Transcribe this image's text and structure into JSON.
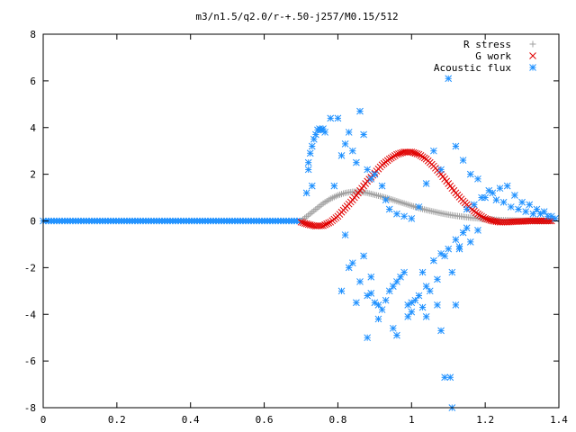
{
  "chart_data": {
    "type": "scatter",
    "title": "m3/n1.5/q2.0/r-+.50-j257/M0.15/512",
    "xlabel": "",
    "ylabel": "",
    "xlim": [
      0,
      1.4
    ],
    "ylim": [
      -8,
      8
    ],
    "xticks": [
      0,
      0.2,
      0.4,
      0.6,
      0.8,
      1,
      1.2,
      1.4
    ],
    "xtick_labels": [
      "0",
      "0.2",
      "0.4",
      "0.6",
      "0.8",
      "1",
      "1.2",
      "1.4"
    ],
    "yticks": [
      -8,
      -6,
      -4,
      -2,
      0,
      2,
      4,
      6,
      8
    ],
    "ytick_labels": [
      "-8",
      "-6",
      "-4",
      "-2",
      "0",
      "2",
      "4",
      "6",
      "8"
    ],
    "grid": false,
    "legend_position": "top-right",
    "series": [
      {
        "name": "R stress",
        "color": "#a0a0a0",
        "marker": "plus",
        "x": [
          0.7,
          0.72,
          0.74,
          0.76,
          0.78,
          0.8,
          0.82,
          0.84,
          0.86,
          0.88,
          0.9,
          0.92,
          0.94,
          0.96,
          0.98,
          1.0,
          1.02,
          1.04,
          1.06,
          1.08,
          1.1,
          1.12,
          1.14,
          1.16,
          1.18,
          1.2,
          1.22,
          1.24,
          1.26,
          1.28,
          1.3,
          1.32,
          1.34,
          1.36,
          1.38
        ],
        "y": [
          0.0,
          0.25,
          0.5,
          0.75,
          0.95,
          1.1,
          1.2,
          1.25,
          1.25,
          1.2,
          1.12,
          1.04,
          0.95,
          0.85,
          0.75,
          0.65,
          0.55,
          0.47,
          0.4,
          0.33,
          0.27,
          0.22,
          0.18,
          0.14,
          0.11,
          0.08,
          0.06,
          0.04,
          0.03,
          0.02,
          0.01,
          0.01,
          0.0,
          0.0,
          0.0
        ]
      },
      {
        "name": "G work",
        "color": "#e00000",
        "marker": "cross",
        "x": [
          0.7,
          0.72,
          0.74,
          0.76,
          0.78,
          0.8,
          0.82,
          0.84,
          0.86,
          0.88,
          0.9,
          0.92,
          0.94,
          0.96,
          0.98,
          1.0,
          1.02,
          1.04,
          1.06,
          1.08,
          1.1,
          1.12,
          1.14,
          1.16,
          1.18,
          1.2,
          1.22,
          1.24,
          1.26,
          1.28,
          1.3,
          1.32,
          1.34,
          1.36,
          1.38
        ],
        "y": [
          -0.05,
          -0.15,
          -0.22,
          -0.2,
          -0.05,
          0.2,
          0.55,
          0.9,
          1.3,
          1.7,
          2.05,
          2.4,
          2.65,
          2.85,
          2.95,
          2.95,
          2.85,
          2.65,
          2.35,
          2.0,
          1.6,
          1.2,
          0.85,
          0.55,
          0.3,
          0.1,
          0.0,
          -0.05,
          -0.05,
          -0.03,
          -0.02,
          0.0,
          0.0,
          0.0,
          0.0
        ]
      },
      {
        "name": "Acoustic flux",
        "color": "#1e90ff",
        "marker": "star",
        "baseline": {
          "x_start": 0.0,
          "x_end": 0.7,
          "y": 0.0
        },
        "x": [
          0.715,
          0.72,
          0.725,
          0.73,
          0.735,
          0.74,
          0.745,
          0.75,
          0.755,
          0.76,
          0.765,
          0.72,
          0.73,
          0.78,
          0.8,
          0.83,
          0.86,
          0.87,
          0.79,
          0.81,
          0.82,
          0.84,
          0.85,
          0.88,
          0.89,
          0.9,
          0.92,
          0.93,
          0.94,
          0.96,
          0.98,
          1.0,
          1.02,
          1.04,
          1.06,
          1.08,
          1.1,
          1.12,
          1.14,
          1.16,
          1.18,
          1.2,
          1.22,
          1.24,
          1.26,
          1.28,
          1.3,
          1.32,
          1.34,
          1.36,
          1.38,
          0.82,
          0.84,
          0.86,
          0.88,
          0.9,
          0.92,
          0.94,
          0.96,
          0.98,
          1.0,
          1.02,
          1.04,
          1.06,
          1.08,
          1.1,
          1.12,
          1.14,
          1.16,
          1.18,
          0.81,
          0.83,
          0.87,
          0.89,
          0.91,
          0.93,
          0.95,
          0.97,
          0.99,
          1.01,
          1.03,
          1.05,
          1.07,
          1.09,
          1.11,
          1.13,
          1.15,
          0.85,
          0.88,
          0.91,
          0.95,
          0.99,
          1.03,
          1.07,
          0.89,
          0.96,
          1.0,
          1.04,
          1.08,
          1.105,
          1.09,
          1.11,
          1.12,
          1.13,
          1.15,
          1.17,
          1.19,
          1.21,
          1.23,
          1.25,
          1.27,
          1.29,
          1.31,
          1.33,
          1.35,
          1.37,
          1.39
        ],
        "y": [
          1.2,
          2.5,
          2.9,
          3.2,
          3.5,
          3.7,
          3.9,
          3.95,
          3.9,
          3.95,
          3.8,
          2.2,
          1.5,
          4.4,
          4.4,
          3.8,
          4.7,
          3.7,
          1.5,
          2.8,
          3.3,
          3.0,
          2.5,
          2.2,
          1.8,
          2.0,
          1.5,
          0.9,
          0.5,
          0.3,
          0.2,
          0.1,
          0.6,
          1.6,
          3.0,
          2.2,
          6.1,
          3.2,
          2.6,
          2.0,
          1.8,
          1.0,
          1.2,
          1.4,
          1.5,
          1.1,
          0.8,
          0.7,
          0.5,
          0.4,
          0.2,
          -0.6,
          -1.8,
          -2.6,
          -3.2,
          -3.5,
          -3.8,
          -3.0,
          -2.6,
          -2.2,
          -3.5,
          -3.2,
          -2.8,
          -1.7,
          -1.4,
          -1.2,
          -0.8,
          -0.5,
          -0.9,
          -0.4,
          -3.0,
          -2.0,
          -1.5,
          -2.4,
          -3.6,
          -3.4,
          -2.8,
          -2.4,
          -3.6,
          -3.4,
          -2.2,
          -3.0,
          -2.5,
          -1.5,
          -2.2,
          -1.1,
          -0.3,
          -3.5,
          -5.0,
          -4.2,
          -4.6,
          -4.1,
          -3.7,
          -3.6,
          -3.1,
          -4.9,
          -3.9,
          -4.1,
          -4.7,
          -6.7,
          -6.7,
          -8.0,
          -3.6,
          -1.2,
          0.5,
          0.7,
          1.0,
          1.3,
          0.9,
          0.8,
          0.6,
          0.5,
          0.4,
          0.3,
          0.3,
          0.2,
          0.1
        ]
      }
    ]
  }
}
